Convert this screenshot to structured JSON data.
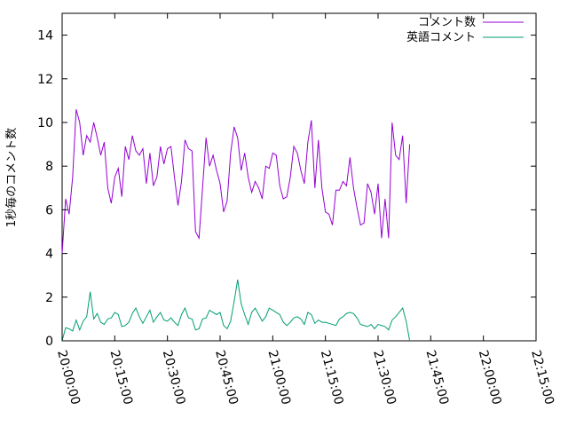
{
  "chart_data": {
    "type": "line",
    "title": "",
    "xlabel": "",
    "ylabel": "1秒毎のコメント数",
    "x_range": [
      "20:00:00",
      "22:15:00"
    ],
    "ylim": [
      0,
      15
    ],
    "x_tick_labels": [
      "20:00:00",
      "20:15:00",
      "20:30:00",
      "20:45:00",
      "21:00:00",
      "21:15:00",
      "21:30:00",
      "21:45:00",
      "22:00:00",
      "22:15:00"
    ],
    "y_tick_labels": [
      "0",
      "2",
      "4",
      "6",
      "8",
      "10",
      "12",
      "14"
    ],
    "grid": false,
    "legend_position": "top-right",
    "series": [
      {
        "name": "コメント数",
        "color": "#9400d3",
        "points": [
          [
            "20:00:00",
            4.0
          ],
          [
            "20:01:00",
            6.5
          ],
          [
            "20:02:00",
            5.8
          ],
          [
            "20:03:00",
            7.5
          ],
          [
            "20:04:00",
            10.6
          ],
          [
            "20:05:00",
            10.0
          ],
          [
            "20:06:00",
            8.5
          ],
          [
            "20:07:00",
            9.4
          ],
          [
            "20:08:00",
            9.1
          ],
          [
            "20:09:00",
            10.0
          ],
          [
            "20:10:00",
            9.3
          ],
          [
            "20:11:00",
            8.5
          ],
          [
            "20:12:00",
            9.1
          ],
          [
            "20:13:00",
            7.0
          ],
          [
            "20:14:00",
            6.3
          ],
          [
            "20:15:00",
            7.5
          ],
          [
            "20:16:00",
            7.9
          ],
          [
            "20:17:00",
            6.6
          ],
          [
            "20:18:00",
            8.9
          ],
          [
            "20:19:00",
            8.3
          ],
          [
            "20:20:00",
            9.4
          ],
          [
            "20:21:00",
            8.7
          ],
          [
            "20:22:00",
            8.5
          ],
          [
            "20:23:00",
            8.8
          ],
          [
            "20:24:00",
            7.2
          ],
          [
            "20:25:00",
            8.6
          ],
          [
            "20:26:00",
            7.1
          ],
          [
            "20:27:00",
            7.5
          ],
          [
            "20:28:00",
            8.9
          ],
          [
            "20:29:00",
            8.1
          ],
          [
            "20:30:00",
            8.8
          ],
          [
            "20:31:00",
            8.9
          ],
          [
            "20:32:00",
            7.5
          ],
          [
            "20:33:00",
            6.2
          ],
          [
            "20:34:00",
            7.3
          ],
          [
            "20:35:00",
            9.2
          ],
          [
            "20:36:00",
            8.8
          ],
          [
            "20:37:00",
            8.7
          ],
          [
            "20:38:00",
            5.0
          ],
          [
            "20:39:00",
            4.7
          ],
          [
            "20:40:00",
            7.0
          ],
          [
            "20:41:00",
            9.3
          ],
          [
            "20:42:00",
            8.0
          ],
          [
            "20:43:00",
            8.5
          ],
          [
            "20:44:00",
            7.8
          ],
          [
            "20:45:00",
            7.2
          ],
          [
            "20:46:00",
            5.9
          ],
          [
            "20:47:00",
            6.4
          ],
          [
            "20:48:00",
            8.6
          ],
          [
            "20:49:00",
            9.8
          ],
          [
            "20:50:00",
            9.3
          ],
          [
            "20:51:00",
            7.8
          ],
          [
            "20:52:00",
            8.6
          ],
          [
            "20:53:00",
            7.5
          ],
          [
            "20:54:00",
            6.8
          ],
          [
            "20:55:00",
            7.3
          ],
          [
            "20:56:00",
            7.0
          ],
          [
            "20:57:00",
            6.5
          ],
          [
            "20:58:00",
            8.0
          ],
          [
            "20:59:00",
            7.9
          ],
          [
            "21:00:00",
            8.6
          ],
          [
            "21:01:00",
            8.5
          ],
          [
            "21:02:00",
            7.1
          ],
          [
            "21:03:00",
            6.5
          ],
          [
            "21:04:00",
            6.6
          ],
          [
            "21:05:00",
            7.5
          ],
          [
            "21:06:00",
            8.9
          ],
          [
            "21:07:00",
            8.6
          ],
          [
            "21:08:00",
            7.8
          ],
          [
            "21:09:00",
            7.2
          ],
          [
            "21:10:00",
            9.1
          ],
          [
            "21:11:00",
            10.1
          ],
          [
            "21:12:00",
            7.0
          ],
          [
            "21:13:00",
            9.2
          ],
          [
            "21:14:00",
            7.0
          ],
          [
            "21:15:00",
            5.9
          ],
          [
            "21:16:00",
            5.8
          ],
          [
            "21:17:00",
            5.3
          ],
          [
            "21:18:00",
            6.9
          ],
          [
            "21:19:00",
            6.9
          ],
          [
            "21:20:00",
            7.3
          ],
          [
            "21:21:00",
            7.1
          ],
          [
            "21:22:00",
            8.4
          ],
          [
            "21:23:00",
            7.0
          ],
          [
            "21:24:00",
            6.1
          ],
          [
            "21:25:00",
            5.3
          ],
          [
            "21:26:00",
            5.4
          ],
          [
            "21:27:00",
            7.2
          ],
          [
            "21:28:00",
            6.8
          ],
          [
            "21:29:00",
            5.8
          ],
          [
            "21:30:00",
            7.2
          ],
          [
            "21:31:00",
            4.7
          ],
          [
            "21:32:00",
            6.5
          ],
          [
            "21:33:00",
            4.7
          ],
          [
            "21:34:00",
            10.0
          ],
          [
            "21:35:00",
            8.5
          ],
          [
            "21:36:00",
            8.3
          ],
          [
            "21:37:00",
            9.4
          ],
          [
            "21:38:00",
            6.3
          ],
          [
            "21:39:00",
            9.0
          ]
        ]
      },
      {
        "name": "英語コメント",
        "color": "#009e73",
        "points": [
          [
            "20:00:00",
            0.0
          ],
          [
            "20:01:00",
            0.6
          ],
          [
            "20:02:00",
            0.55
          ],
          [
            "20:03:00",
            0.45
          ],
          [
            "20:04:00",
            0.95
          ],
          [
            "20:05:00",
            0.5
          ],
          [
            "20:06:00",
            0.9
          ],
          [
            "20:07:00",
            1.1
          ],
          [
            "20:08:00",
            2.25
          ],
          [
            "20:09:00",
            1.0
          ],
          [
            "20:10:00",
            1.25
          ],
          [
            "20:11:00",
            0.85
          ],
          [
            "20:12:00",
            0.75
          ],
          [
            "20:13:00",
            1.0
          ],
          [
            "20:14:00",
            1.05
          ],
          [
            "20:15:00",
            1.3
          ],
          [
            "20:16:00",
            1.2
          ],
          [
            "20:17:00",
            0.65
          ],
          [
            "20:18:00",
            0.7
          ],
          [
            "20:19:00",
            0.85
          ],
          [
            "20:20:00",
            1.25
          ],
          [
            "20:21:00",
            1.5
          ],
          [
            "20:22:00",
            1.1
          ],
          [
            "20:23:00",
            0.8
          ],
          [
            "20:24:00",
            1.1
          ],
          [
            "20:25:00",
            1.4
          ],
          [
            "20:26:00",
            0.85
          ],
          [
            "20:27:00",
            1.1
          ],
          [
            "20:28:00",
            1.3
          ],
          [
            "20:29:00",
            0.95
          ],
          [
            "20:30:00",
            0.9
          ],
          [
            "20:31:00",
            1.05
          ],
          [
            "20:32:00",
            0.85
          ],
          [
            "20:33:00",
            0.7
          ],
          [
            "20:34:00",
            1.2
          ],
          [
            "20:35:00",
            1.5
          ],
          [
            "20:36:00",
            1.05
          ],
          [
            "20:37:00",
            1.0
          ],
          [
            "20:38:00",
            0.5
          ],
          [
            "20:39:00",
            0.55
          ],
          [
            "20:40:00",
            1.0
          ],
          [
            "20:41:00",
            1.05
          ],
          [
            "20:42:00",
            1.4
          ],
          [
            "20:43:00",
            1.3
          ],
          [
            "20:44:00",
            1.2
          ],
          [
            "20:45:00",
            1.3
          ],
          [
            "20:46:00",
            0.7
          ],
          [
            "20:47:00",
            0.55
          ],
          [
            "20:48:00",
            0.9
          ],
          [
            "20:49:00",
            1.8
          ],
          [
            "20:50:00",
            2.8
          ],
          [
            "20:51:00",
            1.7
          ],
          [
            "20:52:00",
            1.2
          ],
          [
            "20:53:00",
            0.75
          ],
          [
            "20:54:00",
            1.3
          ],
          [
            "20:55:00",
            1.5
          ],
          [
            "20:56:00",
            1.2
          ],
          [
            "20:57:00",
            0.9
          ],
          [
            "20:58:00",
            1.1
          ],
          [
            "20:59:00",
            1.5
          ],
          [
            "21:00:00",
            1.4
          ],
          [
            "21:01:00",
            1.3
          ],
          [
            "21:02:00",
            1.2
          ],
          [
            "21:03:00",
            0.85
          ],
          [
            "21:04:00",
            0.7
          ],
          [
            "21:05:00",
            0.85
          ],
          [
            "21:06:00",
            1.05
          ],
          [
            "21:07:00",
            1.1
          ],
          [
            "21:08:00",
            1.0
          ],
          [
            "21:09:00",
            0.75
          ],
          [
            "21:10:00",
            1.3
          ],
          [
            "21:11:00",
            1.2
          ],
          [
            "21:12:00",
            0.8
          ],
          [
            "21:13:00",
            0.95
          ],
          [
            "21:14:00",
            0.85
          ],
          [
            "21:15:00",
            0.85
          ],
          [
            "21:16:00",
            0.8
          ],
          [
            "21:17:00",
            0.75
          ],
          [
            "21:18:00",
            0.7
          ],
          [
            "21:19:00",
            1.0
          ],
          [
            "21:20:00",
            1.1
          ],
          [
            "21:21:00",
            1.25
          ],
          [
            "21:22:00",
            1.3
          ],
          [
            "21:23:00",
            1.25
          ],
          [
            "21:24:00",
            1.05
          ],
          [
            "21:25:00",
            0.75
          ],
          [
            "21:26:00",
            0.7
          ],
          [
            "21:27:00",
            0.65
          ],
          [
            "21:28:00",
            0.75
          ],
          [
            "21:29:00",
            0.55
          ],
          [
            "21:30:00",
            0.75
          ],
          [
            "21:31:00",
            0.7
          ],
          [
            "21:32:00",
            0.65
          ],
          [
            "21:33:00",
            0.5
          ],
          [
            "21:34:00",
            0.95
          ],
          [
            "21:35:00",
            1.1
          ],
          [
            "21:36:00",
            1.3
          ],
          [
            "21:37:00",
            1.5
          ],
          [
            "21:38:00",
            0.9
          ],
          [
            "21:39:00",
            0.0
          ]
        ]
      }
    ]
  }
}
